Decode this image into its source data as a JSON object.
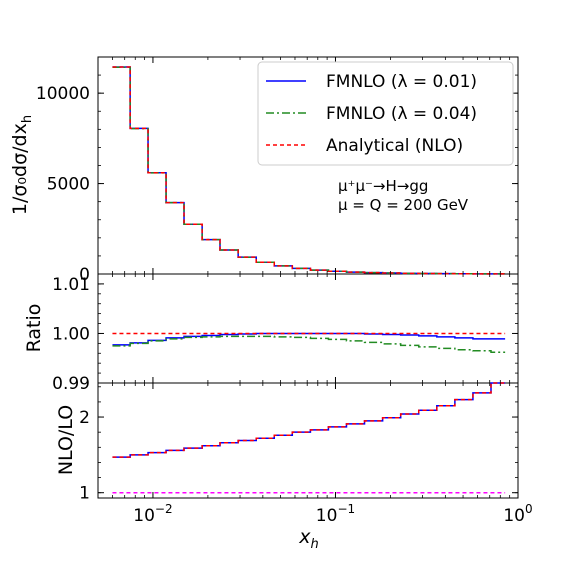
{
  "chart_data": [
    {
      "type": "line",
      "panel": "main",
      "ylabel": "1/σ₀dσ/dx",
      "ylabel_sub": "h",
      "ylim": [
        0,
        12000
      ],
      "yticks": [
        0,
        5000,
        10000
      ],
      "yticklabels": [
        "0",
        "5000",
        "10000"
      ],
      "xscale": "log",
      "xlim": [
        0.005,
        1.0
      ],
      "bin_edges": [
        0.006,
        0.0075,
        0.0094,
        0.0118,
        0.0148,
        0.0186,
        0.0233,
        0.0293,
        0.0368,
        0.0462,
        0.058,
        0.0729,
        0.0915,
        0.1149,
        0.1443,
        0.1813,
        0.2277,
        0.2859,
        0.3591,
        0.451,
        0.5664,
        0.7113,
        0.85
      ],
      "series": [
        {
          "name": "FMNLO (λ = 0.01)",
          "color": "#0000ff",
          "style": "solid",
          "values": [
            11450,
            8050,
            5600,
            3950,
            2750,
            1900,
            1330,
            930,
            650,
            450,
            310,
            215,
            150,
            105,
            75,
            52,
            37,
            26,
            19,
            14,
            10,
            8
          ]
        },
        {
          "name": "FMNLO (λ = 0.04)",
          "color": "#228b22",
          "style": "dashdot",
          "values": [
            11430,
            8040,
            5590,
            3945,
            2748,
            1898,
            1329,
            929,
            649,
            449,
            310,
            214,
            150,
            105,
            75,
            52,
            37,
            26,
            19,
            14,
            10,
            8
          ]
        },
        {
          "name": "Analytical (NLO)",
          "color": "#ff0000",
          "style": "dashed",
          "values": [
            11450,
            8050,
            5600,
            3950,
            2750,
            1900,
            1330,
            930,
            650,
            450,
            310,
            215,
            150,
            105,
            75,
            52,
            37,
            26,
            19,
            14,
            10,
            8
          ]
        }
      ],
      "annotations": [
        "μ⁺μ⁻→H→gg",
        "μ = Q = 200 GeV"
      ],
      "legend_position": "top-right"
    },
    {
      "type": "line",
      "panel": "ratio",
      "ylabel": "Ratio",
      "ylim": [
        0.99,
        1.012
      ],
      "yticks": [
        0.99,
        1.0,
        1.01
      ],
      "yticklabels": [
        "0.99",
        "1.00",
        "1.01"
      ],
      "series": [
        {
          "name": "FMNLO (λ = 0.01)",
          "color": "#0000ff",
          "style": "solid",
          "values": [
            0.9977,
            0.9981,
            0.9986,
            0.9991,
            0.9994,
            0.9996,
            0.9998,
            0.9999,
            1.0,
            1.0,
            1.0,
            1.0,
            1.0,
            1.0,
            0.9999,
            0.9998,
            0.9997,
            0.9995,
            0.9993,
            0.9991,
            0.9989,
            0.9989
          ]
        },
        {
          "name": "FMNLO (λ = 0.04)",
          "color": "#228b22",
          "style": "dashdot",
          "values": [
            0.9975,
            0.998,
            0.9985,
            0.9989,
            0.9992,
            0.9993,
            0.9994,
            0.9994,
            0.9994,
            0.9993,
            0.9992,
            0.999,
            0.9988,
            0.9985,
            0.9982,
            0.9979,
            0.9976,
            0.9973,
            0.997,
            0.9967,
            0.9965,
            0.9962
          ]
        },
        {
          "name": "Analytical (NLO)",
          "color": "#ff0000",
          "style": "dashed",
          "values": [
            1.0,
            1.0,
            1.0,
            1.0,
            1.0,
            1.0,
            1.0,
            1.0,
            1.0,
            1.0,
            1.0,
            1.0,
            1.0,
            1.0,
            1.0,
            1.0,
            1.0,
            1.0,
            1.0,
            1.0,
            1.0,
            1.0
          ]
        }
      ]
    },
    {
      "type": "line",
      "panel": "nlo_lo",
      "ylabel": "NLO/LO",
      "ylim": [
        0.93,
        2.45
      ],
      "yticks": [
        1,
        2
      ],
      "yticklabels": [
        "1",
        "2"
      ],
      "xlabel": "x",
      "xlabel_sub": "h",
      "xticks": [
        0.01,
        0.1,
        1.0
      ],
      "xticklabels_base": [
        "10",
        "10",
        "10"
      ],
      "xticklabels_exp": [
        "−2",
        "−1",
        "0"
      ],
      "series": [
        {
          "name": "FMNLO (λ = 0.01)",
          "color": "#0000ff",
          "style": "solid",
          "values": [
            1.47,
            1.5,
            1.53,
            1.56,
            1.59,
            1.62,
            1.66,
            1.69,
            1.72,
            1.76,
            1.8,
            1.83,
            1.87,
            1.91,
            1.95,
            1.99,
            2.04,
            2.09,
            2.15,
            2.23,
            2.32,
            2.45
          ]
        },
        {
          "name": "Analytical (NLO)",
          "color": "#ff0000",
          "style": "dashed",
          "values": [
            1.47,
            1.5,
            1.53,
            1.56,
            1.59,
            1.62,
            1.66,
            1.69,
            1.72,
            1.76,
            1.8,
            1.83,
            1.87,
            1.91,
            1.95,
            1.99,
            2.04,
            2.09,
            2.15,
            2.23,
            2.32,
            2.45
          ]
        },
        {
          "name": "",
          "color": "#ff00ff",
          "style": "dashed",
          "values": [
            1,
            1,
            1,
            1,
            1,
            1,
            1,
            1,
            1,
            1,
            1,
            1,
            1,
            1,
            1,
            1,
            1,
            1,
            1,
            1,
            1,
            1
          ]
        }
      ]
    }
  ]
}
